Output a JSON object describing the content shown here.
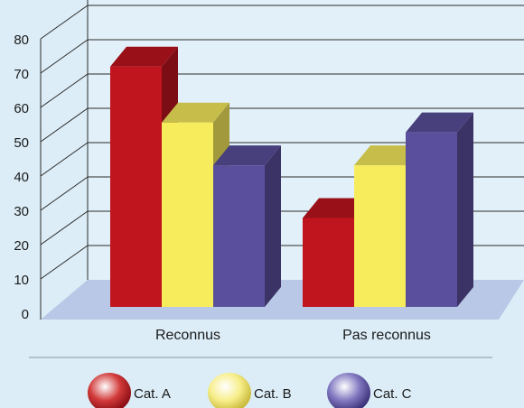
{
  "chart_data": {
    "type": "bar",
    "categories": [
      "Reconnus",
      "Pas reconnus"
    ],
    "series": [
      {
        "name": "Cat. A",
        "values": [
          73,
          27
        ],
        "color": "#c0141e"
      },
      {
        "name": "Cat. B",
        "values": [
          56,
          43
        ],
        "color": "#f7ec5c"
      },
      {
        "name": "Cat. C",
        "values": [
          43,
          53
        ],
        "color": "#5a4f9c"
      }
    ],
    "ylim": [
      0,
      80
    ],
    "yticks": [
      0,
      10,
      20,
      30,
      40,
      50,
      60,
      70,
      80
    ],
    "grid": true,
    "legend_position": "bottom",
    "style": "3d"
  }
}
